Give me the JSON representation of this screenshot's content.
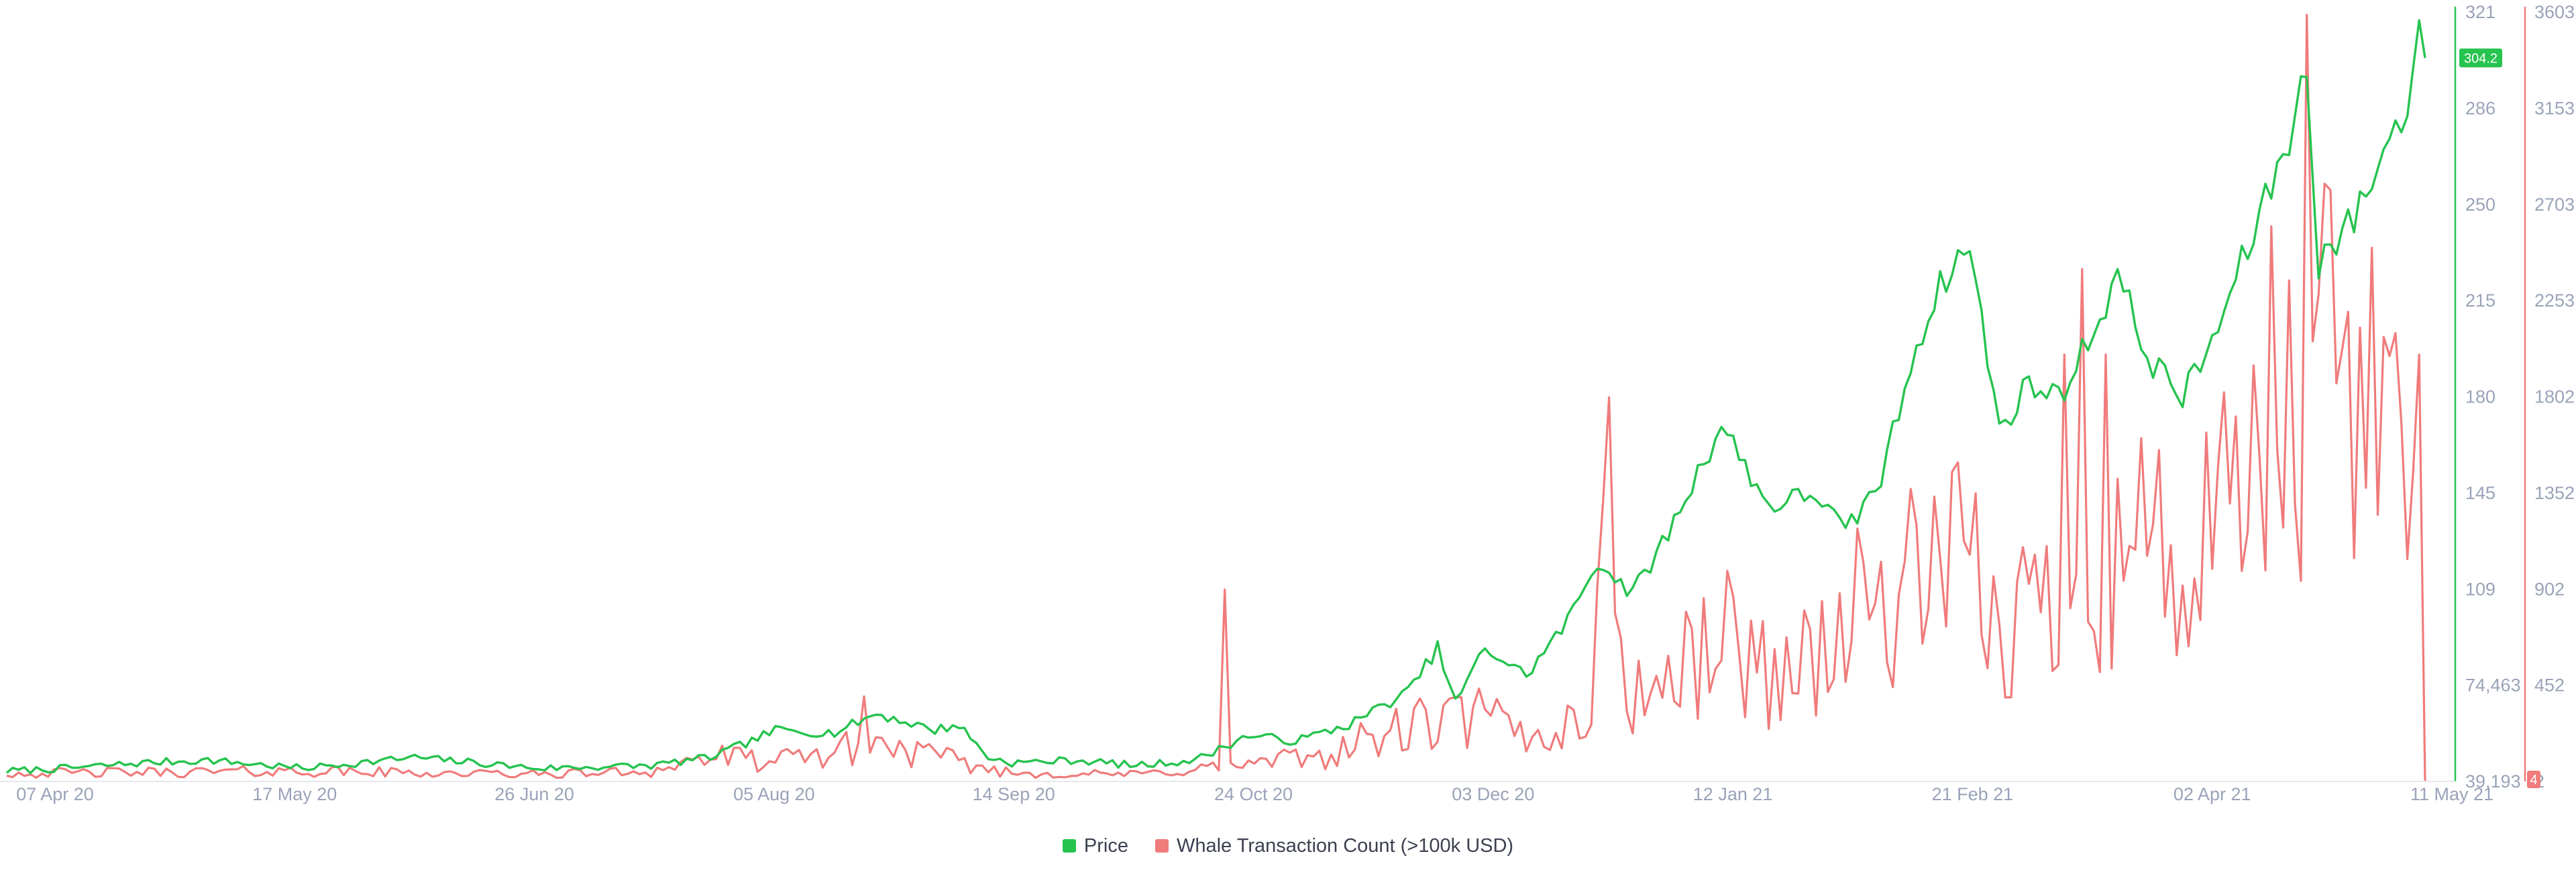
{
  "chart_data": {
    "type": "line",
    "x_ticks": [
      "07 Apr 20",
      "17 May 20",
      "26 Jun 20",
      "05 Aug 20",
      "14 Sep 20",
      "24 Oct 20",
      "03 Dec 20",
      "12 Jan 21",
      "21 Feb 21",
      "02 Apr 21",
      "11 May 21"
    ],
    "x_range": [
      "2020-03-28",
      "2021-05-11"
    ],
    "series": [
      {
        "name": "Price",
        "color": "#26c34f",
        "axis": "left-inner",
        "current_value": "304.2",
        "ticks": [
          "39,193",
          "74,463",
          "109",
          "145",
          "180",
          "215",
          "250",
          "286",
          "321"
        ],
        "ylim": [
          39.19,
          321
        ],
        "anchors": [
          [
            "2020-03-28",
            43
          ],
          [
            "2020-04-07",
            44
          ],
          [
            "2020-04-20",
            46
          ],
          [
            "2020-05-01",
            47
          ],
          [
            "2020-05-17",
            44
          ],
          [
            "2020-06-05",
            48
          ],
          [
            "2020-06-26",
            44
          ],
          [
            "2020-07-15",
            45
          ],
          [
            "2020-07-25",
            48
          ],
          [
            "2020-08-01",
            54
          ],
          [
            "2020-08-05",
            58
          ],
          [
            "2020-08-15",
            57
          ],
          [
            "2020-08-22",
            64
          ],
          [
            "2020-09-01",
            58
          ],
          [
            "2020-09-05",
            60
          ],
          [
            "2020-09-10",
            48
          ],
          [
            "2020-09-14",
            46
          ],
          [
            "2020-09-25",
            47
          ],
          [
            "2020-10-05",
            45
          ],
          [
            "2020-10-15",
            47
          ],
          [
            "2020-10-24",
            56
          ],
          [
            "2020-11-01",
            54
          ],
          [
            "2020-11-10",
            60
          ],
          [
            "2020-11-20",
            72
          ],
          [
            "2020-11-25",
            88
          ],
          [
            "2020-11-28",
            68
          ],
          [
            "2020-12-03",
            88
          ],
          [
            "2020-12-10",
            78
          ],
          [
            "2020-12-17",
            98
          ],
          [
            "2020-12-22",
            120
          ],
          [
            "2020-12-28",
            108
          ],
          [
            "2021-01-03",
            130
          ],
          [
            "2021-01-12",
            170
          ],
          [
            "2021-01-20",
            140
          ],
          [
            "2021-01-28",
            145
          ],
          [
            "2021-02-02",
            130
          ],
          [
            "2021-02-08",
            150
          ],
          [
            "2021-02-14",
            200
          ],
          [
            "2021-02-19",
            225
          ],
          [
            "2021-02-23",
            235
          ],
          [
            "2021-02-28",
            168
          ],
          [
            "2021-03-05",
            185
          ],
          [
            "2021-03-10",
            180
          ],
          [
            "2021-03-15",
            200
          ],
          [
            "2021-03-20",
            225
          ],
          [
            "2021-03-25",
            195
          ],
          [
            "2021-03-31",
            180
          ],
          [
            "2021-04-05",
            200
          ],
          [
            "2021-04-12",
            240
          ],
          [
            "2021-04-18",
            275
          ],
          [
            "2021-04-21",
            300
          ],
          [
            "2021-04-23",
            230
          ],
          [
            "2021-04-29",
            245
          ],
          [
            "2021-05-03",
            265
          ],
          [
            "2021-05-08",
            288
          ],
          [
            "2021-05-10",
            318
          ],
          [
            "2021-05-11",
            304.2
          ]
        ]
      },
      {
        "name": "Whale Transaction Count (>100k USD)",
        "color": "#f07b7b",
        "axis": "right",
        "current_value": "4",
        "ticks": [
          "2",
          "452",
          "902",
          "1352",
          "1802",
          "2253",
          "2703",
          "3153",
          "3603"
        ],
        "ylim": [
          2,
          3603
        ],
        "anchors": [
          [
            "2020-03-28",
            40
          ],
          [
            "2020-05-17",
            50
          ],
          [
            "2020-06-26",
            35
          ],
          [
            "2020-07-15",
            50
          ],
          [
            "2020-07-25",
            120
          ],
          [
            "2020-08-05",
            90
          ],
          [
            "2020-08-22",
            180
          ],
          [
            "2020-09-05",
            90
          ],
          [
            "2020-09-14",
            40
          ],
          [
            "2020-10-05",
            35
          ],
          [
            "2020-10-15",
            60
          ],
          [
            "2020-10-24",
            80
          ],
          [
            "2020-11-05",
            120
          ],
          [
            "2020-11-20",
            250
          ],
          [
            "2020-12-03",
            300
          ],
          [
            "2020-12-10",
            200
          ],
          [
            "2020-12-20",
            300
          ],
          [
            "2020-12-24",
            1050
          ],
          [
            "2020-12-28",
            400
          ],
          [
            "2021-01-05",
            500
          ],
          [
            "2021-01-12",
            700
          ],
          [
            "2021-01-20",
            500
          ],
          [
            "2021-01-28",
            600
          ],
          [
            "2021-02-05",
            800
          ],
          [
            "2021-02-14",
            900
          ],
          [
            "2021-02-21",
            1000
          ],
          [
            "2021-02-28",
            700
          ],
          [
            "2021-03-10",
            900
          ],
          [
            "2021-03-20",
            1100
          ],
          [
            "2021-03-25",
            1200
          ],
          [
            "2021-03-31",
            900
          ],
          [
            "2021-04-10",
            1300
          ],
          [
            "2021-04-20",
            1600
          ],
          [
            "2021-04-25",
            1800
          ],
          [
            "2021-05-02",
            1500
          ],
          [
            "2021-05-07",
            1400
          ],
          [
            "2021-05-09",
            1300
          ],
          [
            "2021-05-10",
            600
          ],
          [
            "2021-05-11",
            4
          ]
        ]
      }
    ],
    "legend": "bottom-center",
    "grid": false
  }
}
